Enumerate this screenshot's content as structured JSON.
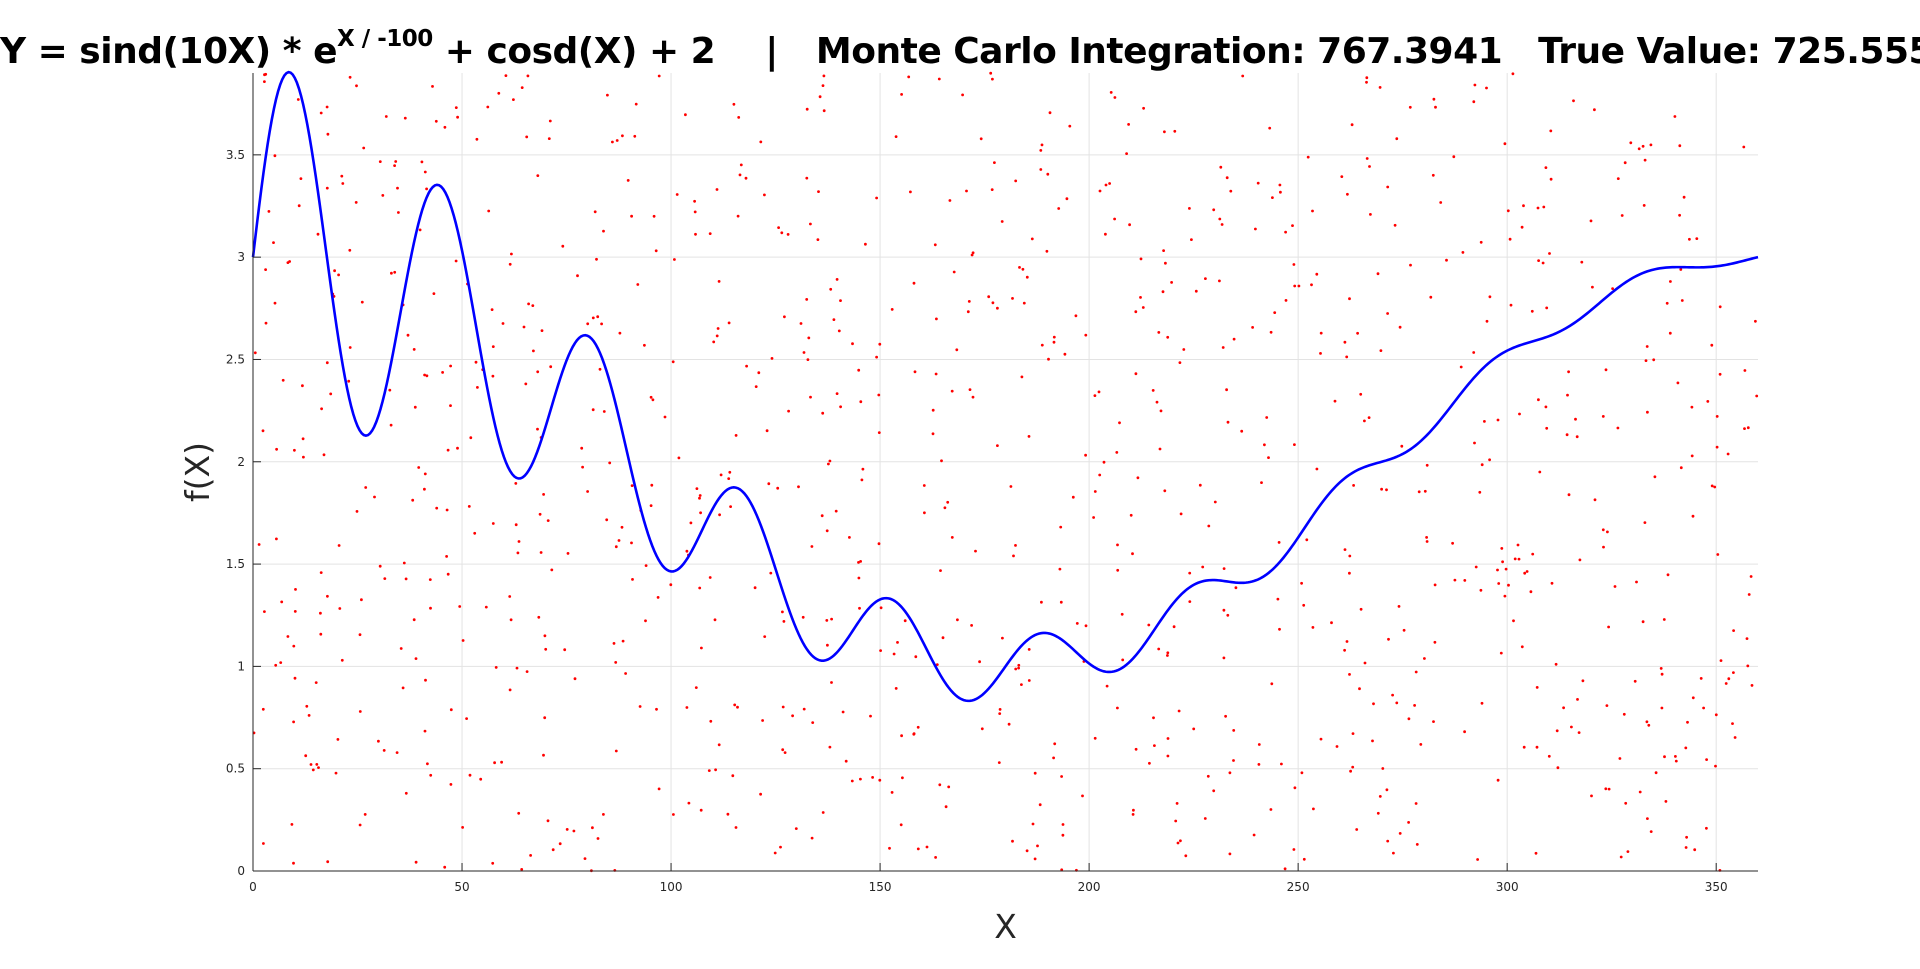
{
  "title": {
    "equation_prefix": "Y = sind(10X) * e",
    "equation_exponent": "X / -100",
    "equation_suffix": " + cosd(X) + 2",
    "separator": "|",
    "mc_label": "Monte Carlo Integration: 767.3941",
    "true_label": "True Value: 725.555"
  },
  "chart_data": {
    "type": "line",
    "xlabel": "X",
    "ylabel": "f(X)",
    "xlim": [
      0,
      360
    ],
    "ylim": [
      0,
      3.9
    ],
    "grid": true,
    "xticks": [
      0,
      50,
      100,
      150,
      200,
      250,
      300,
      350
    ],
    "yticks": [
      0,
      0.5,
      1,
      1.5,
      2,
      2.5,
      3,
      3.5
    ],
    "series": [
      {
        "function": "sind(10X) * e^(X / -100) + cosd(X) + 2",
        "color": "#0000ff",
        "x_start": 0,
        "x_end": 360,
        "x_step": 0.5
      }
    ],
    "scatter": {
      "description": "random uniform samples for Monte Carlo integration",
      "color": "#ff0000",
      "count": 1000,
      "seed": 7
    },
    "monte_carlo_estimate": 767.3941,
    "true_value": 725.555
  }
}
